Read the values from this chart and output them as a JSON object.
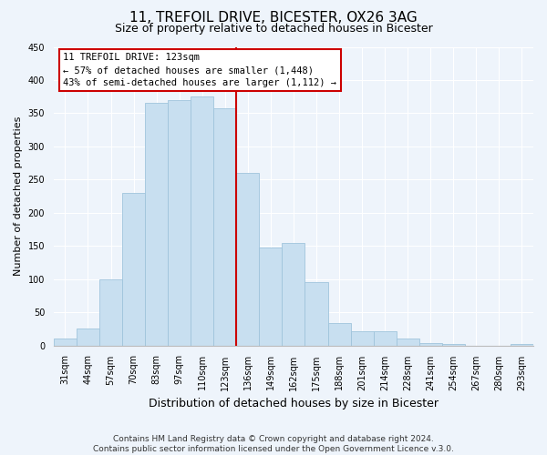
{
  "title": "11, TREFOIL DRIVE, BICESTER, OX26 3AG",
  "subtitle": "Size of property relative to detached houses in Bicester",
  "xlabel": "Distribution of detached houses by size in Bicester",
  "ylabel": "Number of detached properties",
  "bar_labels": [
    "31sqm",
    "44sqm",
    "57sqm",
    "70sqm",
    "83sqm",
    "97sqm",
    "110sqm",
    "123sqm",
    "136sqm",
    "149sqm",
    "162sqm",
    "175sqm",
    "188sqm",
    "201sqm",
    "214sqm",
    "228sqm",
    "241sqm",
    "254sqm",
    "267sqm",
    "280sqm",
    "293sqm"
  ],
  "bar_heights": [
    10,
    25,
    100,
    230,
    365,
    370,
    375,
    358,
    260,
    148,
    155,
    95,
    34,
    21,
    21,
    11,
    3,
    2,
    0,
    0,
    2
  ],
  "bar_color": "#c8dff0",
  "bar_edge_color": "#a0c4dc",
  "highlight_index": 7,
  "highlight_line_color": "#cc0000",
  "annotation_line1": "11 TREFOIL DRIVE: 123sqm",
  "annotation_line2": "← 57% of detached houses are smaller (1,448)",
  "annotation_line3": "43% of semi-detached houses are larger (1,112) →",
  "annotation_box_color": "#ffffff",
  "annotation_box_edge": "#cc0000",
  "ylim": [
    0,
    450
  ],
  "yticks": [
    0,
    50,
    100,
    150,
    200,
    250,
    300,
    350,
    400,
    450
  ],
  "footer_line1": "Contains HM Land Registry data © Crown copyright and database right 2024.",
  "footer_line2": "Contains public sector information licensed under the Open Government Licence v.3.0.",
  "background_color": "#eef4fb",
  "grid_color": "#ffffff",
  "title_fontsize": 11,
  "subtitle_fontsize": 9,
  "ylabel_fontsize": 8,
  "xlabel_fontsize": 9,
  "tick_fontsize": 7,
  "footer_fontsize": 6.5
}
